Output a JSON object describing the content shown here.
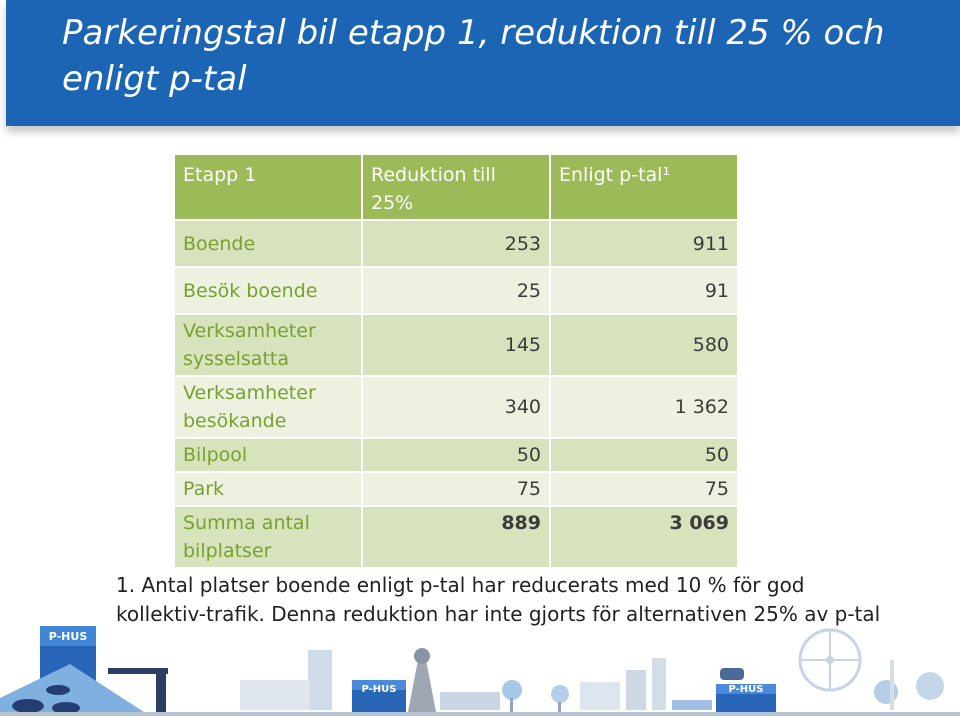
{
  "slide": {
    "title": "Parkeringstal bil etapp 1, reduktion till 25 % och enligt p-tal"
  },
  "table": {
    "headers": [
      "Etapp 1",
      "Reduktion till 25%",
      "Enligt p-tal¹"
    ],
    "rows": [
      {
        "label": "Boende",
        "reduktion": "253",
        "ptal": "911"
      },
      {
        "label": "Besök boende",
        "reduktion": "25",
        "ptal": "91"
      },
      {
        "label": "Verksamheter sysselsatta",
        "reduktion": "145",
        "ptal": "580"
      },
      {
        "label": "Verksamheter besökande",
        "reduktion": "340",
        "ptal": "1 362"
      },
      {
        "label": "Bilpool",
        "reduktion": "50",
        "ptal": "50"
      },
      {
        "label": "Park",
        "reduktion": "75",
        "ptal": "75"
      },
      {
        "label": "Summa antal bilplatser",
        "reduktion": "889",
        "ptal": "3 069"
      }
    ]
  },
  "footnote": "1. Antal platser boende enligt p-tal har reducerats med 10 % för god kollektiv-trafik. Denna reduktion har inte gjorts för alternativen 25% av p-tal",
  "illustration": {
    "signs": [
      "P-HUS",
      "P-HUS",
      "P-HUS"
    ]
  },
  "colors": {
    "banner": "#1c64b4",
    "table_header": "#9bbb59",
    "row_dark": "#d7e3bc",
    "row_light": "#ecf2df",
    "label_text": "#7aa030"
  }
}
